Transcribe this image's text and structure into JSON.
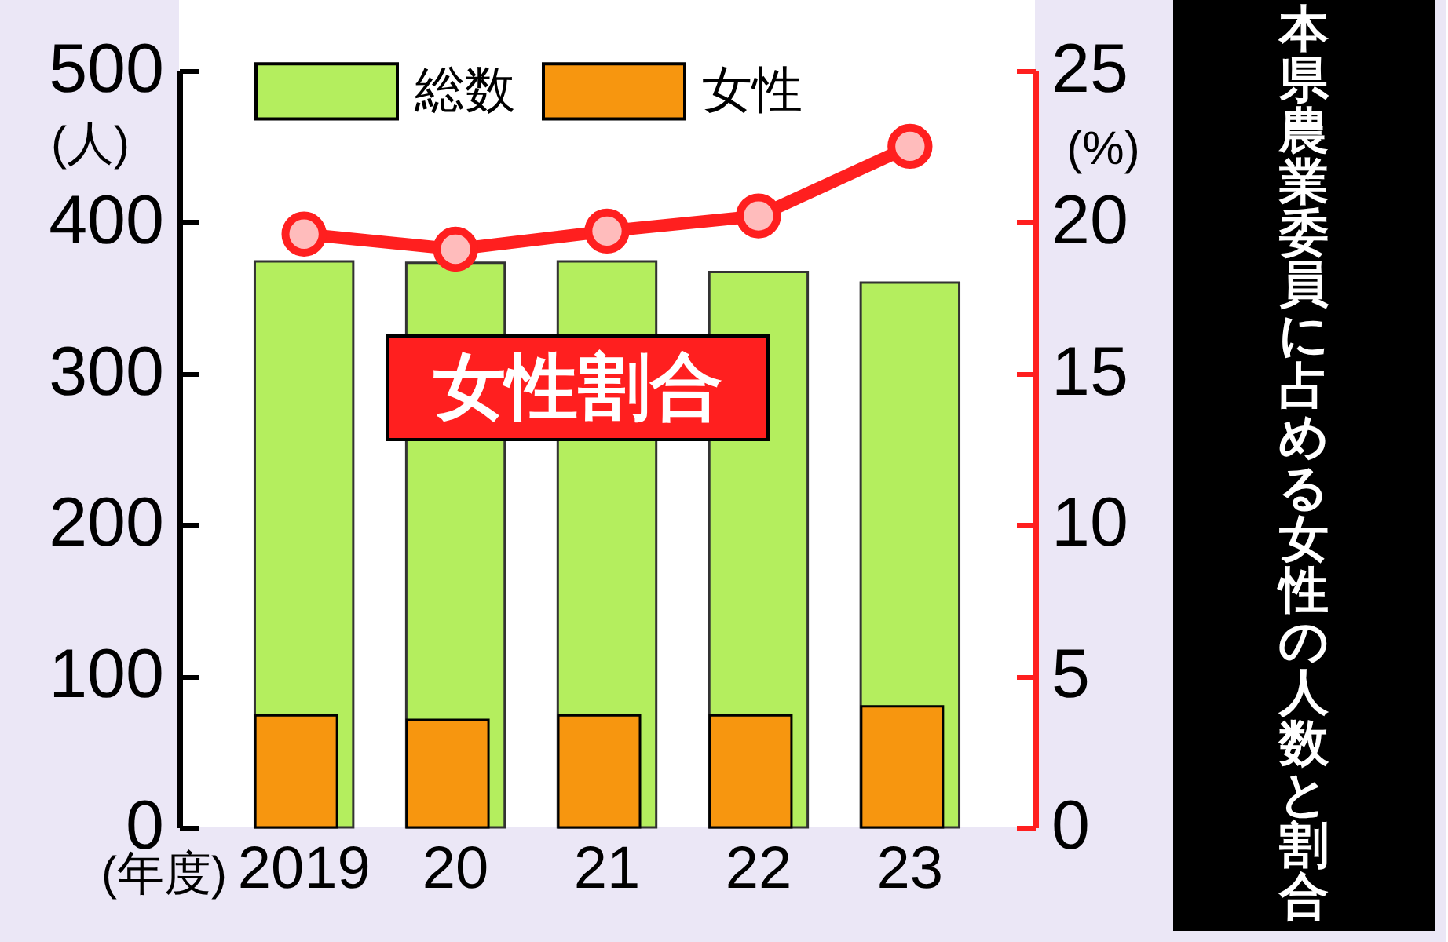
{
  "chart_data": {
    "type": "bar",
    "title": "本県農業委員に占める女性の人数と割合",
    "xlabel": "(年度)",
    "ylabel": "(人)",
    "y2label": "(%)",
    "categories": [
      "2019",
      "20",
      "21",
      "22",
      "23"
    ],
    "series": [
      {
        "name": "総数",
        "color": "#b4ee5e",
        "values": [
          374,
          373,
          374,
          367,
          360
        ]
      },
      {
        "name": "女性",
        "color": "#f7960f",
        "values": [
          74,
          71,
          74,
          74,
          80
        ]
      },
      {
        "name": "女性割合",
        "type": "line",
        "axis": "y2",
        "color": "#ff1f1f",
        "values": [
          19.6,
          19.1,
          19.7,
          20.2,
          22.5
        ]
      }
    ],
    "ylim": [
      0,
      500
    ],
    "yticks": [
      0,
      100,
      200,
      300,
      400,
      500
    ],
    "y2lim": [
      0,
      25
    ],
    "y2ticks": [
      0,
      5,
      10,
      15,
      20,
      25
    ],
    "legend": "top",
    "marker": "circle",
    "grid": false
  }
}
